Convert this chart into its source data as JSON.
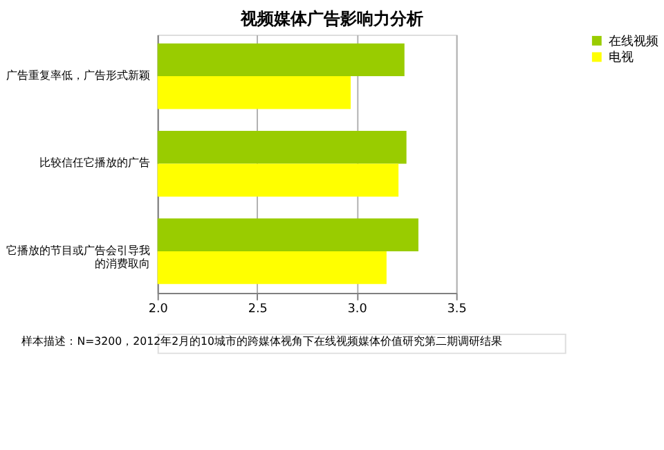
{
  "chart_data": {
    "type": "bar",
    "orientation": "horizontal",
    "title": "视频媒体广告影响力分析",
    "categories": [
      "广告重复率低，广告形式新颖",
      "比较信任它播放的广告",
      "它播放的节目或广告会引导我的消费取向"
    ],
    "series": [
      {
        "name": "在线视频",
        "color": "#99cc00",
        "values": [
          3.24,
          3.25,
          3.31
        ]
      },
      {
        "name": "电视",
        "color": "#ffff00",
        "values": [
          2.97,
          3.21,
          3.15
        ]
      }
    ],
    "xlim": [
      2.0,
      3.5
    ],
    "xticks": [
      {
        "value": 2.0,
        "label": "2.0"
      },
      {
        "value": 2.5,
        "label": "2.5"
      },
      {
        "value": 3.0,
        "label": "3.0"
      },
      {
        "value": 3.5,
        "label": "3.5"
      }
    ],
    "grid": "x",
    "legend": "right",
    "annotations": [
      "样本描述：N=3200，2012年2月的10城市的跨媒体视角下在线视频媒体价值研究第二期调研结果"
    ]
  }
}
